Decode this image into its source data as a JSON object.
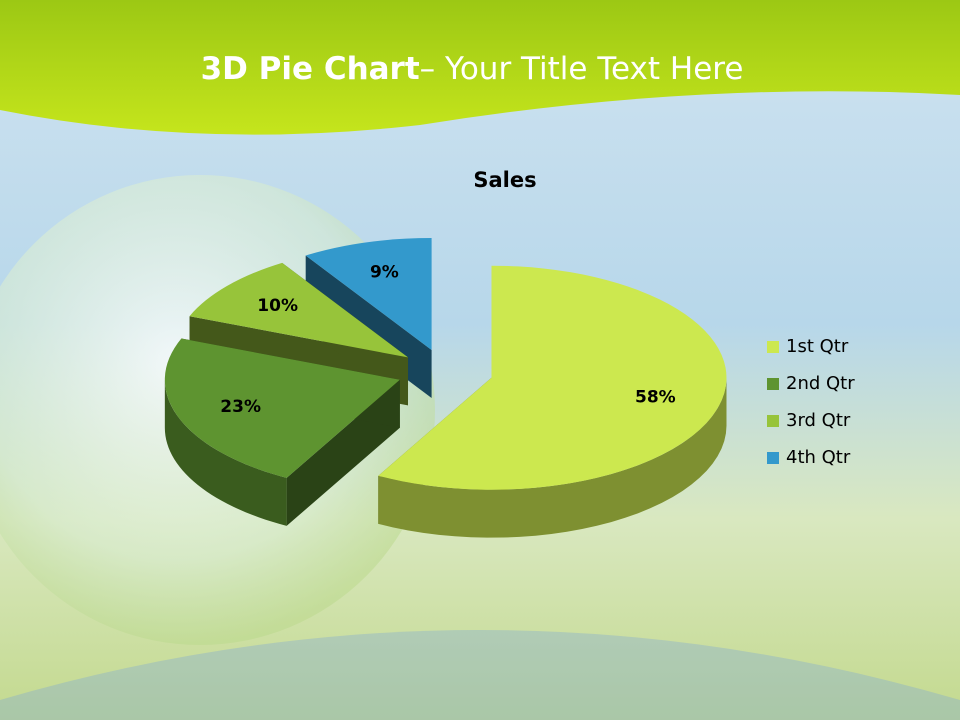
{
  "slide": {
    "title_bold": "3D Pie Chart",
    "title_rest": "– Your Title Text Here"
  },
  "chart_data": {
    "type": "pie3d",
    "title": "Sales",
    "categories": [
      "1st Qtr",
      "2nd Qtr",
      "3rd Qtr",
      "4th Qtr"
    ],
    "values": [
      58,
      23,
      10,
      9
    ],
    "value_labels": [
      "58%",
      "23%",
      "10%",
      "9%"
    ],
    "colors": [
      "#cce84f",
      "#5e9430",
      "#97c43a",
      "#3399cc"
    ],
    "legend": "right"
  }
}
